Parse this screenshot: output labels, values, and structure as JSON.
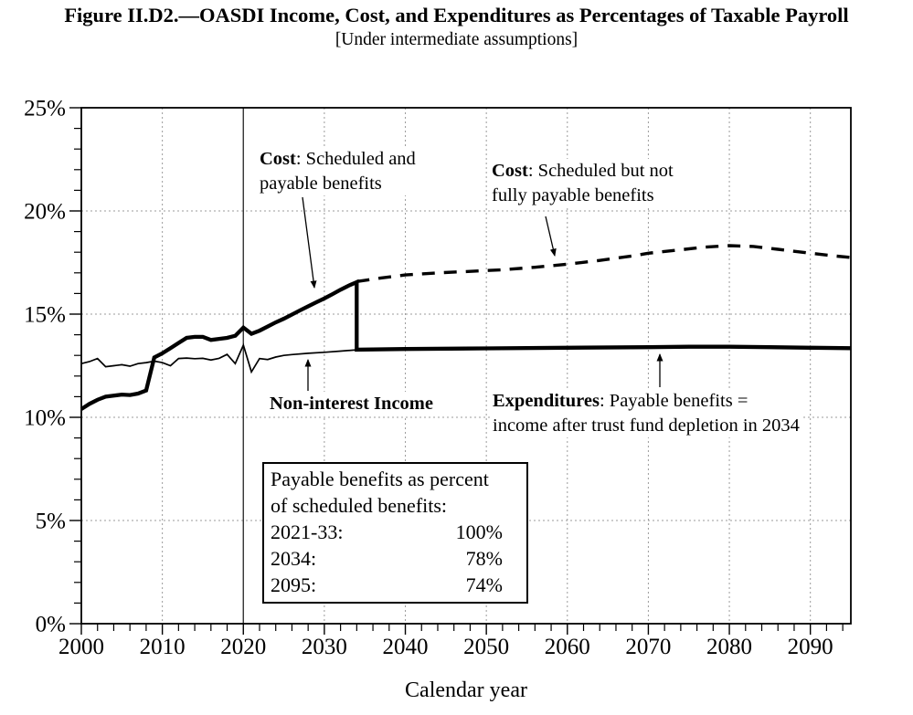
{
  "figure": {
    "title": "Figure II.D2.—OASDI Income, Cost, and Expenditures as Percentages of Taxable Payroll",
    "subtitle": "[Under intermediate assumptions]"
  },
  "chart_data": {
    "type": "line",
    "title": "OASDI Income, Cost, and Expenditures as Percentages of Taxable Payroll",
    "xlabel": "Calendar year",
    "ylabel": "",
    "xlim": [
      2000,
      2095
    ],
    "ylim": [
      0,
      25
    ],
    "x_major_ticks": [
      2000,
      2010,
      2020,
      2030,
      2040,
      2050,
      2060,
      2070,
      2080,
      2090
    ],
    "x_minor_step": 2,
    "y_major_ticks": [
      0,
      5,
      10,
      15,
      20,
      25
    ],
    "y_tick_labels": [
      "0%",
      "5%",
      "10%",
      "15%",
      "20%",
      "25%"
    ],
    "y_minor_step": 1,
    "grid": {
      "h_lines": [
        5,
        10,
        15,
        20
      ],
      "v_lines": [
        2010,
        2030,
        2040,
        2050,
        2060,
        2070,
        2080,
        2090
      ],
      "solid_v_line": 2020
    },
    "trust_fund_depletion_year": 2034,
    "series": [
      {
        "name": "Non-interest Income",
        "style": "thin_solid",
        "points": [
          [
            2000,
            12.6
          ],
          [
            2001,
            12.7
          ],
          [
            2002,
            12.85
          ],
          [
            2003,
            12.45
          ],
          [
            2004,
            12.5
          ],
          [
            2005,
            12.55
          ],
          [
            2006,
            12.48
          ],
          [
            2007,
            12.6
          ],
          [
            2008,
            12.65
          ],
          [
            2009,
            12.72
          ],
          [
            2010,
            12.65
          ],
          [
            2011,
            12.5
          ],
          [
            2012,
            12.85
          ],
          [
            2013,
            12.87
          ],
          [
            2014,
            12.84
          ],
          [
            2015,
            12.86
          ],
          [
            2016,
            12.78
          ],
          [
            2017,
            12.86
          ],
          [
            2018,
            13.05
          ],
          [
            2019,
            12.6
          ],
          [
            2020,
            13.5
          ],
          [
            2021,
            12.2
          ],
          [
            2022,
            12.85
          ],
          [
            2023,
            12.8
          ],
          [
            2024,
            12.92
          ],
          [
            2025,
            13.0
          ],
          [
            2026,
            13.04
          ],
          [
            2028,
            13.1
          ],
          [
            2030,
            13.15
          ],
          [
            2032,
            13.21
          ],
          [
            2034,
            13.27
          ],
          [
            2040,
            13.3
          ],
          [
            2050,
            13.33
          ],
          [
            2060,
            13.36
          ],
          [
            2070,
            13.4
          ],
          [
            2080,
            13.41
          ],
          [
            2090,
            13.37
          ],
          [
            2095,
            13.35
          ]
        ]
      },
      {
        "name": "Cost: Scheduled but not fully payable benefits",
        "style": "thick_dashed",
        "points": [
          [
            2034,
            16.58
          ],
          [
            2037,
            16.75
          ],
          [
            2040,
            16.9
          ],
          [
            2044,
            17.0
          ],
          [
            2048,
            17.07
          ],
          [
            2052,
            17.15
          ],
          [
            2056,
            17.27
          ],
          [
            2060,
            17.42
          ],
          [
            2064,
            17.6
          ],
          [
            2068,
            17.82
          ],
          [
            2070,
            17.95
          ],
          [
            2074,
            18.12
          ],
          [
            2077,
            18.25
          ],
          [
            2080,
            18.32
          ],
          [
            2083,
            18.28
          ],
          [
            2086,
            18.14
          ],
          [
            2090,
            17.95
          ],
          [
            2093,
            17.82
          ],
          [
            2095,
            17.75
          ]
        ]
      },
      {
        "name": "Cost: Scheduled and payable benefits / Expenditures: Payable benefits after depletion",
        "style": "thick_solid",
        "points": [
          [
            2000,
            10.4
          ],
          [
            2001,
            10.65
          ],
          [
            2002,
            10.85
          ],
          [
            2003,
            11.0
          ],
          [
            2004,
            11.05
          ],
          [
            2005,
            11.1
          ],
          [
            2006,
            11.08
          ],
          [
            2007,
            11.15
          ],
          [
            2008,
            11.3
          ],
          [
            2009,
            12.9
          ],
          [
            2010,
            13.1
          ],
          [
            2011,
            13.35
          ],
          [
            2012,
            13.6
          ],
          [
            2013,
            13.85
          ],
          [
            2014,
            13.9
          ],
          [
            2015,
            13.9
          ],
          [
            2016,
            13.75
          ],
          [
            2017,
            13.8
          ],
          [
            2018,
            13.85
          ],
          [
            2019,
            13.95
          ],
          [
            2020,
            14.35
          ],
          [
            2021,
            14.05
          ],
          [
            2022,
            14.2
          ],
          [
            2023,
            14.4
          ],
          [
            2024,
            14.6
          ],
          [
            2025,
            14.78
          ],
          [
            2026,
            14.98
          ],
          [
            2027,
            15.18
          ],
          [
            2028,
            15.38
          ],
          [
            2029,
            15.57
          ],
          [
            2030,
            15.76
          ],
          [
            2031,
            15.97
          ],
          [
            2032,
            16.18
          ],
          [
            2033,
            16.38
          ],
          [
            2034,
            16.55
          ],
          [
            2034,
            13.28
          ],
          [
            2040,
            13.31
          ],
          [
            2050,
            13.34
          ],
          [
            2060,
            13.37
          ],
          [
            2070,
            13.4
          ],
          [
            2075,
            13.42
          ],
          [
            2080,
            13.42
          ],
          [
            2085,
            13.4
          ],
          [
            2090,
            13.37
          ],
          [
            2095,
            13.35
          ]
        ]
      }
    ]
  },
  "annotations": {
    "cost_payable": {
      "bold": "Cost",
      "line1_rest": ": Scheduled and",
      "line2": "payable benefits"
    },
    "cost_scheduled": {
      "bold": "Cost",
      "line1_rest": ": Scheduled but not",
      "line2": "fully payable benefits"
    },
    "non_interest": {
      "label": "Non-interest Income"
    },
    "expenditures": {
      "bold": "Expenditures",
      "line1_rest": ": Payable benefits =",
      "line2": "income after trust fund depletion in 2034"
    }
  },
  "payable_box": {
    "line1": "Payable benefits as percent",
    "line2": "of scheduled benefits:",
    "rows": [
      {
        "label": "2021-33:",
        "value": "100%"
      },
      {
        "label": "2034:",
        "value": "78%"
      },
      {
        "label": "2095:",
        "value": "74%"
      }
    ]
  },
  "colors": {
    "line": "#000000",
    "grid": "#9b9b9b",
    "depletion_line": "#333333",
    "background": "#ffffff",
    "text": "#000000"
  }
}
